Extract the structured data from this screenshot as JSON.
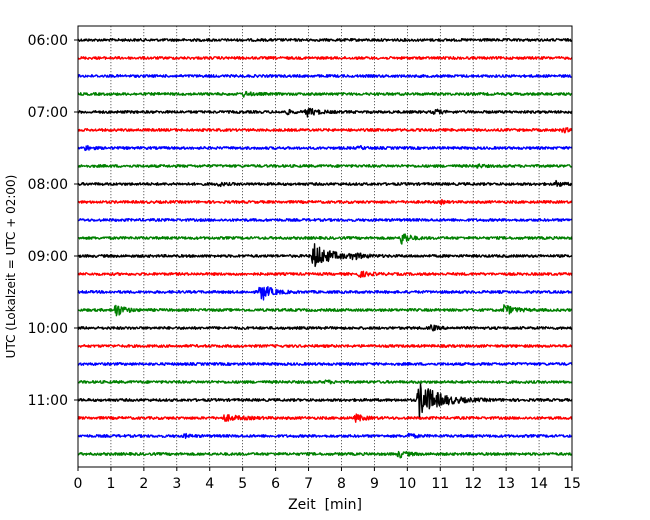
{
  "chart_data": {
    "type": "line",
    "xlabel": "Zeit  [min]",
    "ylabel": "UTC (Lokalzeit = UTC + 02:00)",
    "xlim": [
      0,
      15
    ],
    "x_ticks": [
      "0",
      "1",
      "2",
      "3",
      "4",
      "5",
      "6",
      "7",
      "8",
      "9",
      "10",
      "11",
      "12",
      "13",
      "14",
      "15"
    ],
    "y_tick_labels": [
      "06:00",
      "07:00",
      "08:00",
      "09:00",
      "10:00",
      "11:00"
    ],
    "grid_x": true,
    "line_colors": [
      "#000000",
      "#ff0000",
      "#0000ff",
      "#008000"
    ],
    "traces": [
      {
        "start": "06:00",
        "events": []
      },
      {
        "start": "06:15",
        "events": []
      },
      {
        "start": "06:30",
        "events": []
      },
      {
        "start": "06:45",
        "events": [
          {
            "t": 5.0,
            "amp": 3,
            "dur": 0.4
          }
        ]
      },
      {
        "start": "07:00",
        "events": [
          {
            "t": 6.3,
            "amp": 3,
            "dur": 0.3
          },
          {
            "t": 6.9,
            "amp": 5,
            "dur": 0.6
          },
          {
            "t": 10.8,
            "amp": 4,
            "dur": 0.3
          }
        ]
      },
      {
        "start": "07:15",
        "events": [
          {
            "t": 14.7,
            "amp": 3,
            "dur": 0.3
          }
        ]
      },
      {
        "start": "07:30",
        "events": [
          {
            "t": 0.2,
            "amp": 3,
            "dur": 0.3
          },
          {
            "t": 8.5,
            "amp": 2,
            "dur": 0.3
          }
        ]
      },
      {
        "start": "07:45",
        "events": [
          {
            "t": 12.1,
            "amp": 2,
            "dur": 0.3
          }
        ]
      },
      {
        "start": "08:00",
        "events": [
          {
            "t": 4.2,
            "amp": 3,
            "dur": 0.3
          },
          {
            "t": 14.5,
            "amp": 4,
            "dur": 0.3
          }
        ]
      },
      {
        "start": "08:15",
        "events": [
          {
            "t": 11.0,
            "amp": 2,
            "dur": 0.2
          }
        ]
      },
      {
        "start": "08:30",
        "events": []
      },
      {
        "start": "08:45",
        "events": [
          {
            "t": 9.8,
            "amp": 9,
            "dur": 0.4
          }
        ]
      },
      {
        "start": "09:00",
        "events": [
          {
            "t": 7.1,
            "amp": 14,
            "dur": 1.0
          },
          {
            "t": 8.3,
            "amp": 3,
            "dur": 0.6
          }
        ]
      },
      {
        "start": "09:15",
        "events": [
          {
            "t": 8.5,
            "amp": 3,
            "dur": 0.6
          }
        ]
      },
      {
        "start": "09:30",
        "events": [
          {
            "t": 5.5,
            "amp": 11,
            "dur": 0.6
          }
        ]
      },
      {
        "start": "09:45",
        "events": [
          {
            "t": 1.1,
            "amp": 8,
            "dur": 0.5
          },
          {
            "t": 12.9,
            "amp": 6,
            "dur": 0.6
          }
        ]
      },
      {
        "start": "10:00",
        "events": [
          {
            "t": 10.7,
            "amp": 4,
            "dur": 0.3
          }
        ]
      },
      {
        "start": "10:15",
        "events": []
      },
      {
        "start": "10:30",
        "events": []
      },
      {
        "start": "10:45",
        "events": [
          {
            "t": 7.5,
            "amp": 2,
            "dur": 0.3
          }
        ]
      },
      {
        "start": "11:00",
        "events": [
          {
            "t": 10.3,
            "amp": 20,
            "dur": 1.2
          }
        ]
      },
      {
        "start": "11:15",
        "events": [
          {
            "t": 4.4,
            "amp": 3,
            "dur": 1.0
          },
          {
            "t": 8.4,
            "amp": 4,
            "dur": 0.5
          }
        ]
      },
      {
        "start": "11:30",
        "events": [
          {
            "t": 3.2,
            "amp": 2,
            "dur": 0.4
          },
          {
            "t": 10.0,
            "amp": 3,
            "dur": 0.4
          }
        ]
      },
      {
        "start": "11:45",
        "events": [
          {
            "t": 9.7,
            "amp": 4,
            "dur": 0.5
          }
        ]
      }
    ]
  }
}
